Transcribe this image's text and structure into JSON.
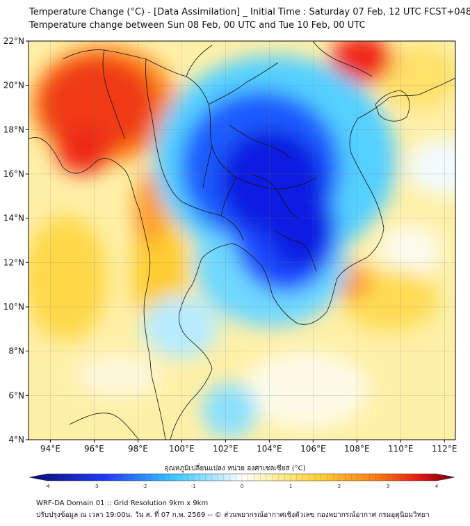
{
  "header": {
    "title_line1": "Temperature Change (°C) - [Data Assimilation] _ Initial Time : Saturday 07 Feb, 12 UTC FCST+048",
    "title_line2": "Temperature change between Sun 08 Feb, 00 UTC and Tue 10 Feb, 00 UTC"
  },
  "map": {
    "lat_range": [
      4,
      22
    ],
    "lon_range": [
      93,
      112.5
    ],
    "y_ticks": [
      {
        "value": 22,
        "label": "22°N"
      },
      {
        "value": 20,
        "label": "20°N"
      },
      {
        "value": 18,
        "label": "18°N"
      },
      {
        "value": 16,
        "label": "16°N"
      },
      {
        "value": 14,
        "label": "14°N"
      },
      {
        "value": 12,
        "label": "12°N"
      },
      {
        "value": 10,
        "label": "10°N"
      },
      {
        "value": 8,
        "label": "8°N"
      },
      {
        "value": 6,
        "label": "6°N"
      },
      {
        "value": 4,
        "label": "4°N"
      }
    ],
    "x_ticks": [
      {
        "value": 94,
        "label": "94°E"
      },
      {
        "value": 96,
        "label": "96°E"
      },
      {
        "value": 98,
        "label": "98°E"
      },
      {
        "value": 100,
        "label": "100°E"
      },
      {
        "value": 102,
        "label": "102°E"
      },
      {
        "value": 104,
        "label": "104°E"
      },
      {
        "value": 106,
        "label": "106°E"
      },
      {
        "value": 108,
        "label": "108°E"
      },
      {
        "value": 110,
        "label": "110°E"
      },
      {
        "value": 112,
        "label": "112°E"
      }
    ]
  },
  "colorbar": {
    "label": "อุณหภูมิเปลี่ยนแปลง หน่วย องศาเซลเซียส (°C)",
    "range": [
      -4,
      4
    ],
    "tick_labels": [
      "-4",
      "-3",
      "-2",
      "-1",
      "0",
      "1",
      "2",
      "3",
      "4"
    ],
    "colors": {
      "dark_blue": "#0a0a6e",
      "blue": "#1e3cff",
      "light_blue": "#3cc8ff",
      "pale_blue": "#c8f0ff",
      "white": "#ffffff",
      "pale_yellow": "#fff5b4",
      "yellow": "#ffd232",
      "orange": "#ff7814",
      "red": "#e61414",
      "dark_red": "#6e0000"
    }
  },
  "footer": {
    "line1": "WRF-DA Domain 01 :: Grid Resolution 9km x 9km",
    "line2": "ปรับปรุงข้อมูล ณ เวลา 19:00น. วัน ส. ที่ 07 ก.พ. 2569 -- © ส่วนพยากรณ์อากาศเชิงตัวเลข กองพยากรณ์อากาศ กรมอุตุนิยมวิทยา"
  }
}
